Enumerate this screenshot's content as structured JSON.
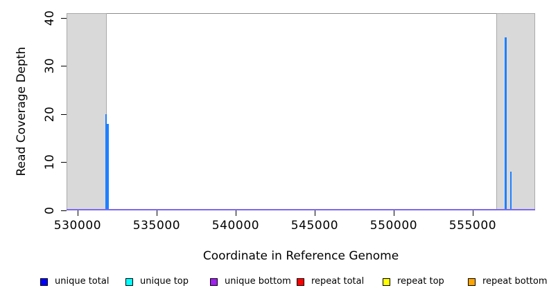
{
  "axes": {
    "x_title": "Coordinate in Reference Genome",
    "y_title": "Read Coverage Depth"
  },
  "legend": {
    "items": [
      {
        "label": "unique total",
        "color": "#0000FF"
      },
      {
        "label": "unique top",
        "color": "#00FFFF"
      },
      {
        "label": "unique bottom",
        "color": "#A020F0"
      },
      {
        "label": "repeat total",
        "color": "#FF0000"
      },
      {
        "label": "repeat top",
        "color": "#FFFF00"
      },
      {
        "label": "repeat bottom",
        "color": "#FFA500"
      }
    ]
  },
  "chart_data": {
    "type": "line",
    "title": "",
    "xlabel": "Coordinate in Reference Genome",
    "ylabel": "Read Coverage Depth",
    "xlim": [
      529300,
      558950
    ],
    "ylim": [
      0,
      41
    ],
    "x_ticks": [
      530000,
      535000,
      540000,
      545000,
      550000,
      555000
    ],
    "y_ticks": [
      0,
      10,
      20,
      30,
      40
    ],
    "grid": false,
    "legend_position": "bottom",
    "highlight_regions": [
      {
        "start": 529300,
        "end": 531840,
        "color": "#D9D9D9"
      },
      {
        "start": 556500,
        "end": 558950,
        "color": "#D9D9D9"
      }
    ],
    "zero_line_color": "#7B68EE",
    "series": [
      {
        "name": "unique total",
        "legend_color": "#0000FF",
        "plot_color": "#1E80FF",
        "baseline": 0,
        "spikes": [
          {
            "x": 531790,
            "y": 20
          },
          {
            "x": 531905,
            "y": 18
          },
          {
            "x": 557080,
            "y": 36
          },
          {
            "x": 557410,
            "y": 8
          }
        ]
      },
      {
        "name": "unique top",
        "legend_color": "#00FFFF",
        "baseline": 0,
        "spikes": []
      },
      {
        "name": "unique bottom",
        "legend_color": "#A020F0",
        "baseline": 0,
        "spikes": []
      },
      {
        "name": "repeat total",
        "legend_color": "#FF0000",
        "baseline": 0,
        "spikes": []
      },
      {
        "name": "repeat top",
        "legend_color": "#FFFF00",
        "baseline": 0,
        "spikes": []
      },
      {
        "name": "repeat bottom",
        "legend_color": "#FFA500",
        "baseline": 0,
        "spikes": []
      }
    ]
  }
}
